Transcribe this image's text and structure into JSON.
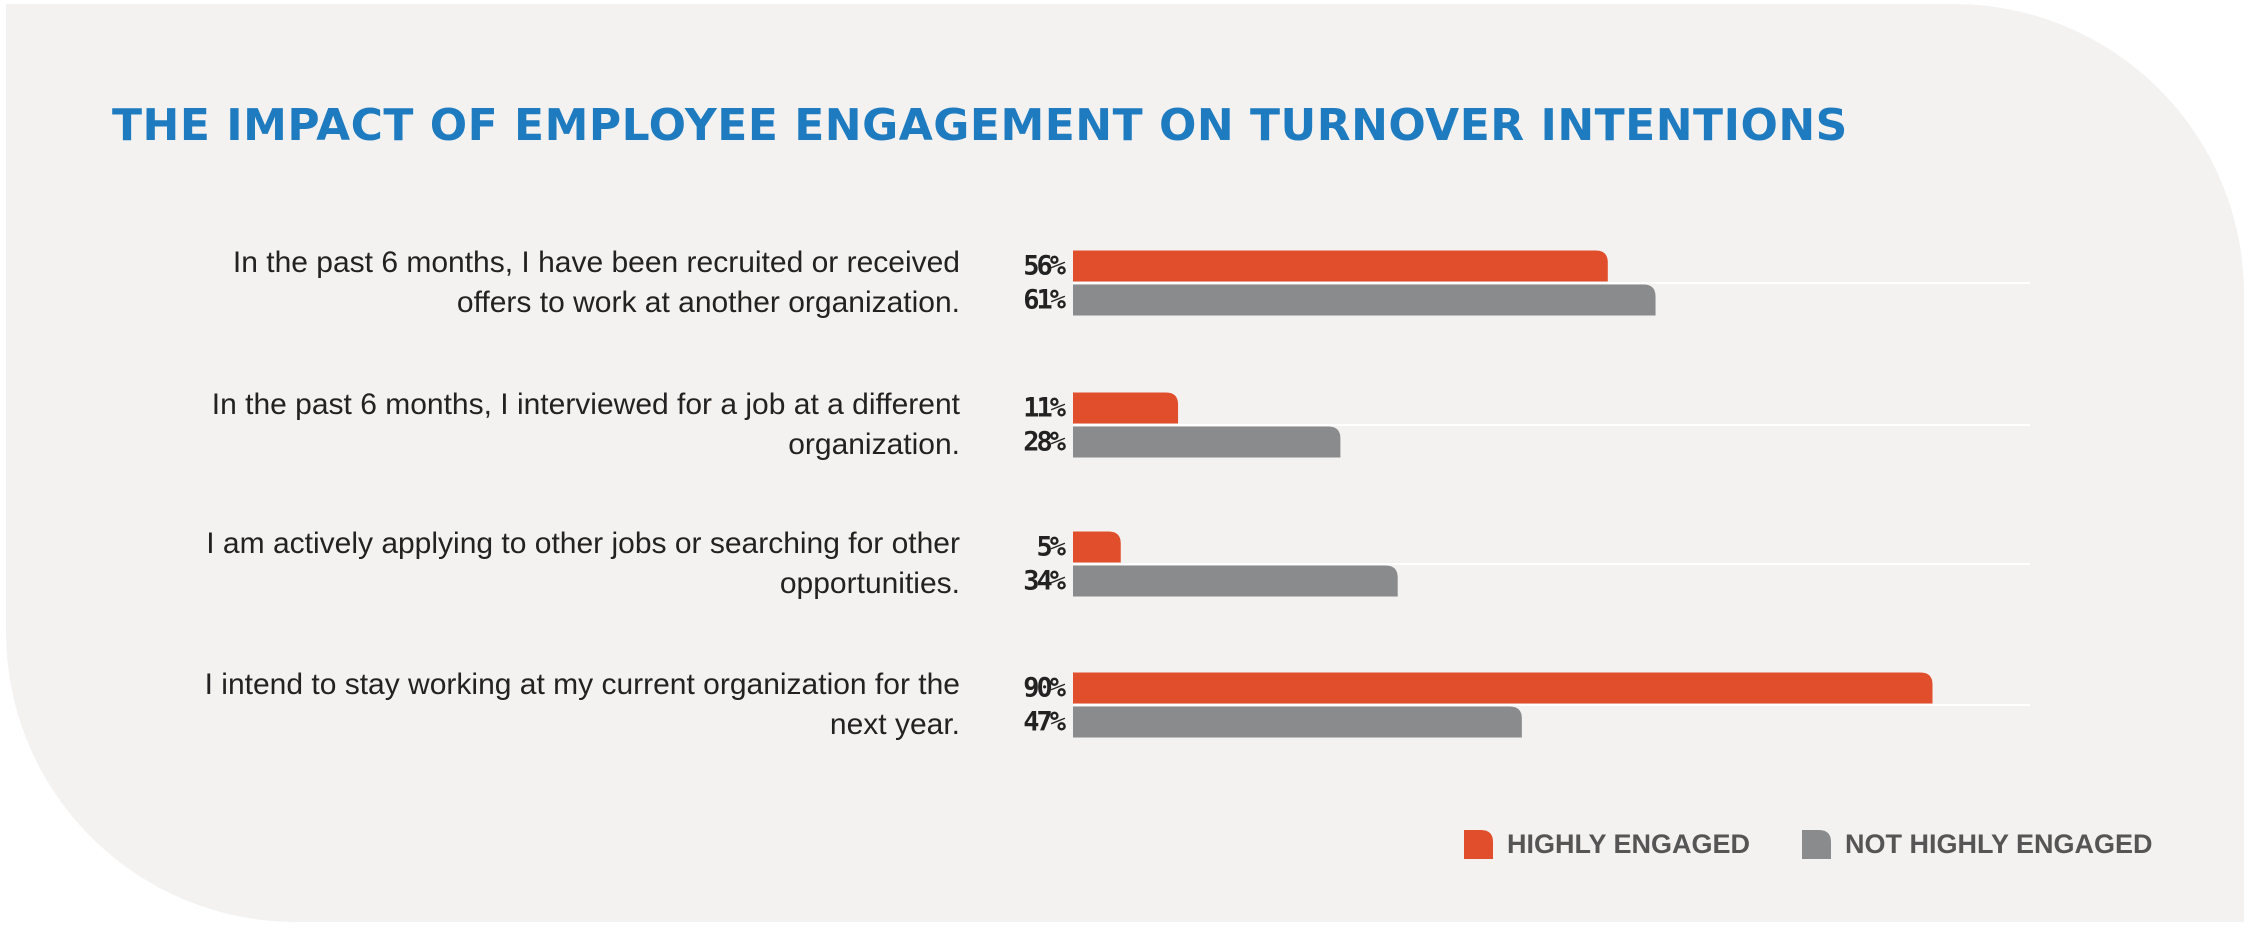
{
  "chart_data": {
    "type": "bar",
    "orientation": "horizontal",
    "title": "THE IMPACT OF EMPLOYEE ENGAGEMENT ON TURNOVER INTENTIONS",
    "categories": [
      "In the past 6 months, I have been recruited or received offers to work at another organization.",
      "In the past 6 months, I interviewed for a job at a different organization.",
      "I am actively applying to other jobs or searching for other opportunities.",
      "I intend to stay working at my current organization for the next year."
    ],
    "series": [
      {
        "name": "HIGHLY ENGAGED",
        "color": "#e04e2b",
        "values": [
          56,
          11,
          5,
          90
        ],
        "value_labels": [
          "56%",
          "11%",
          "5%",
          "90%"
        ]
      },
      {
        "name": "NOT HIGHLY ENGAGED",
        "color": "#898b8d",
        "values": [
          61,
          28,
          34,
          47
        ],
        "value_labels": [
          "61%",
          "28%",
          "34%",
          "47%"
        ]
      }
    ],
    "legend": "bottom-right"
  }
}
